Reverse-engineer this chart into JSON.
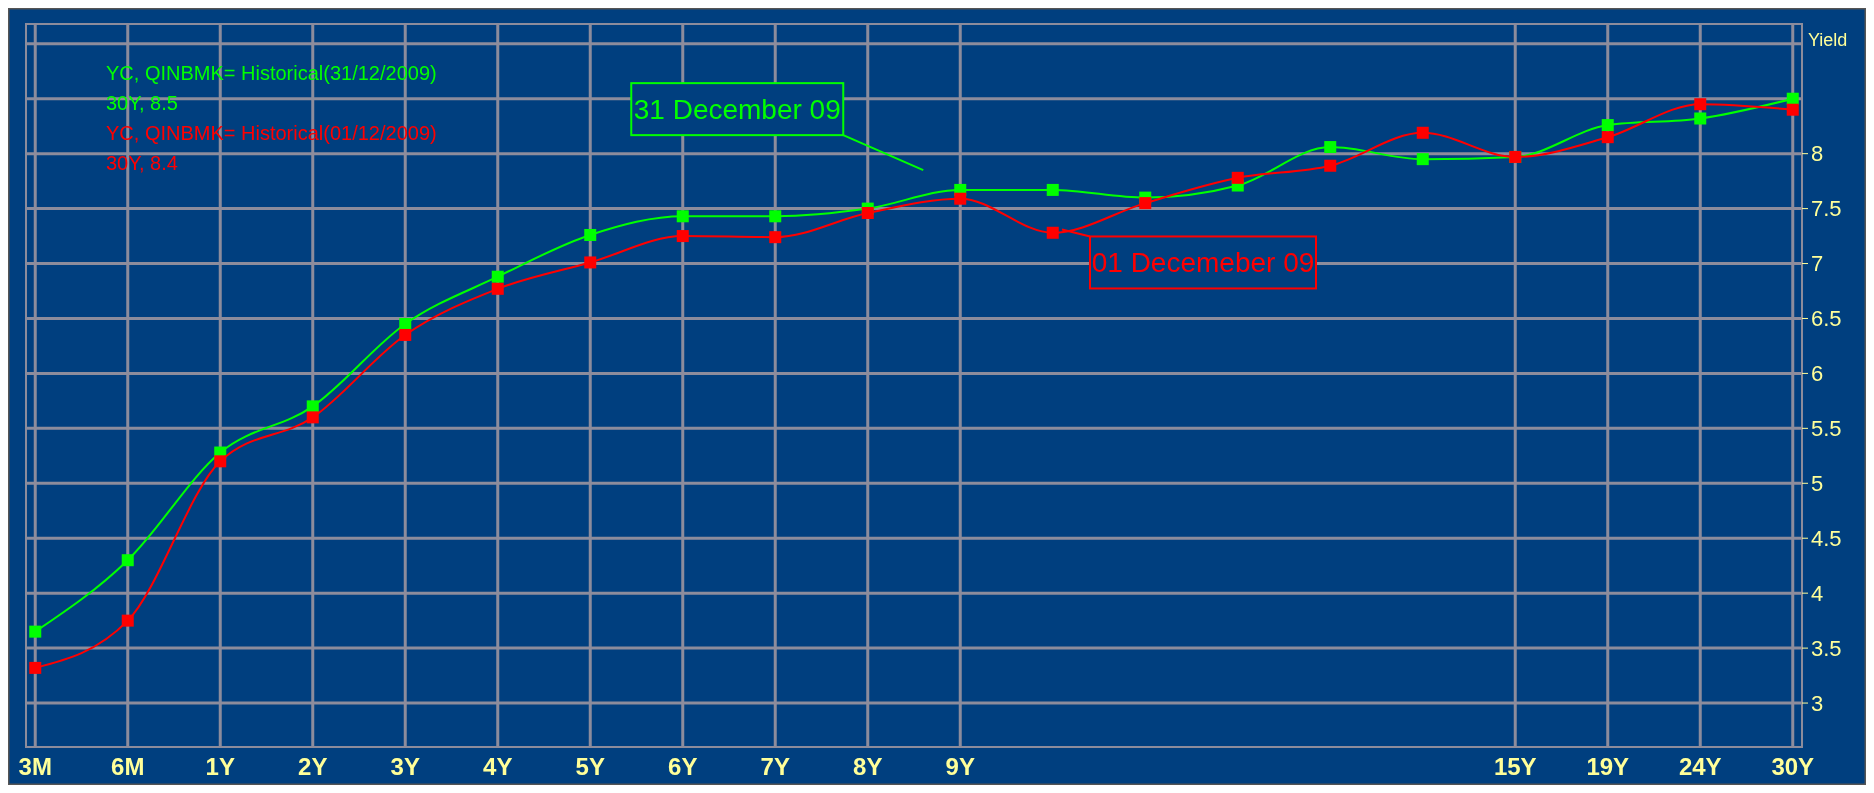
{
  "chart_data": {
    "type": "line",
    "ylabel": "Yield",
    "categories": [
      "3M",
      "6M",
      "1Y",
      "2Y",
      "3Y",
      "4Y",
      "5Y",
      "6Y",
      "7Y",
      "8Y",
      "9Y",
      null,
      null,
      null,
      null,
      null,
      "15Y",
      "19Y",
      "24Y",
      "30Y"
    ],
    "series": [
      {
        "name": "YC, QINBMK= Historical(31/12/2009)",
        "color": "#00ff00",
        "values": [
          3.65,
          4.3,
          5.28,
          5.7,
          6.45,
          6.88,
          7.26,
          7.43,
          7.43,
          7.5,
          7.67,
          7.67,
          7.6,
          7.71,
          8.06,
          7.95,
          7.97,
          8.26,
          8.32,
          8.5
        ]
      },
      {
        "name": "YC, QINBMK= Historical(01/12/2009)",
        "color": "#ff0000",
        "values": [
          3.32,
          3.75,
          5.2,
          5.6,
          6.35,
          6.77,
          7.01,
          7.25,
          7.24,
          7.46,
          7.59,
          7.28,
          7.55,
          7.78,
          7.89,
          8.19,
          7.97,
          8.15,
          8.45,
          8.4
        ]
      }
    ],
    "ylim": [
      2.6,
      9.18
    ],
    "yticks": [
      3,
      3.5,
      4,
      4.5,
      5,
      5.5,
      6,
      6.5,
      7,
      7.5,
      8,
      {
        "value": 8.5,
        "label": null
      },
      {
        "value": 9,
        "label": null
      }
    ],
    "grid": true,
    "legend": "top left",
    "marker": "square",
    "line_style": "solid",
    "annotations": [
      "30Y, 8.5",
      "30Y, 8.4",
      "31 December 09",
      "01 Decemeber 09"
    ]
  }
}
